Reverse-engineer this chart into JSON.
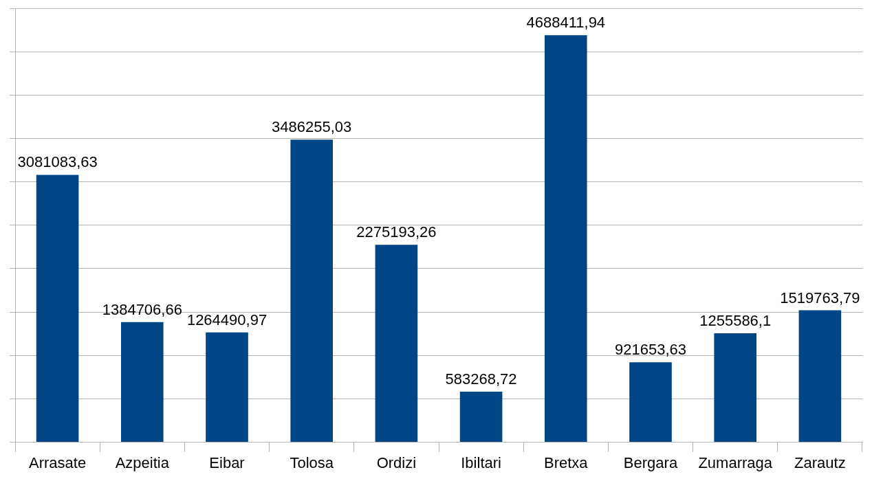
{
  "chart_data": {
    "type": "bar",
    "categories": [
      "Arrasate",
      "Azpeitia",
      "Eibar",
      "Tolosa",
      "Ordizi",
      "Ibiltari",
      "Bretxa",
      "Bergara",
      "Zumarraga",
      "Zarautz"
    ],
    "values": [
      3081083.63,
      1384706.66,
      1264490.97,
      3486255.03,
      2275193.26,
      583268.72,
      4688411.94,
      921653.63,
      1255586.1,
      1519763.79
    ],
    "value_labels": [
      "3081083,63",
      "1384706,66",
      "1264490,97",
      "3486255,03",
      "2275193,26",
      "583268,72",
      "4688411,94",
      "921653,63",
      "1255586,1",
      "1519763,79"
    ],
    "color": "#004586",
    "ylim": [
      0,
      5000000
    ],
    "yticks": [
      {
        "value": 0,
        "label": null
      },
      {
        "value": 500000,
        "label": null
      },
      {
        "value": 1000000,
        "label": null
      },
      {
        "value": 1500000,
        "label": null
      },
      {
        "value": 2000000,
        "label": null
      },
      {
        "value": 2500000,
        "label": null
      },
      {
        "value": 3000000,
        "label": null
      },
      {
        "value": 3500000,
        "label": null
      },
      {
        "value": 4000000,
        "label": null
      },
      {
        "value": 4500000,
        "label": null
      },
      {
        "value": 5000000,
        "label": null
      }
    ],
    "tick_labels": "x",
    "grid": "y",
    "legend": false
  }
}
